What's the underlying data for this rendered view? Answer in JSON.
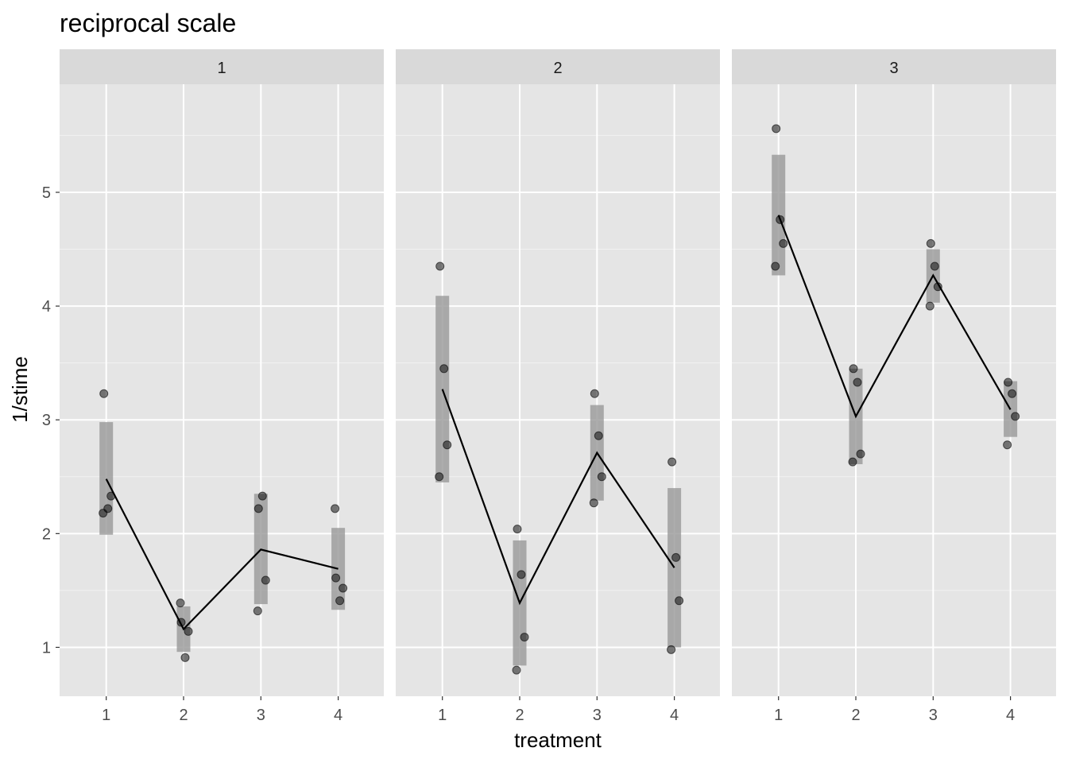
{
  "chart_data": {
    "type": "scatter",
    "title": "reciprocal scale",
    "xlabel": "treatment",
    "ylabel": "1/stime",
    "x_categories": [
      "1",
      "2",
      "3",
      "4"
    ],
    "ylim": [
      0.57,
      5.95
    ],
    "y_ticks": [
      1,
      2,
      3,
      4,
      5
    ],
    "grid": true,
    "panels": [
      {
        "label": "1",
        "points": [
          {
            "x": 1,
            "y": 3.23
          },
          {
            "x": 1,
            "y": 2.22
          },
          {
            "x": 1,
            "y": 2.33
          },
          {
            "x": 1,
            "y": 2.18
          },
          {
            "x": 2,
            "y": 1.22
          },
          {
            "x": 2,
            "y": 0.91
          },
          {
            "x": 2,
            "y": 1.14
          },
          {
            "x": 2,
            "y": 1.39
          },
          {
            "x": 3,
            "y": 2.22
          },
          {
            "x": 3,
            "y": 2.33
          },
          {
            "x": 3,
            "y": 1.59
          },
          {
            "x": 3,
            "y": 1.32
          },
          {
            "x": 4,
            "y": 1.61
          },
          {
            "x": 4,
            "y": 1.41
          },
          {
            "x": 4,
            "y": 1.52
          },
          {
            "x": 4,
            "y": 2.22
          }
        ],
        "means": [
          2.48,
          1.16,
          1.86,
          1.69
        ],
        "intervals": [
          [
            1.99,
            2.98
          ],
          [
            0.96,
            1.36
          ],
          [
            1.38,
            2.35
          ],
          [
            1.33,
            2.05
          ]
        ]
      },
      {
        "label": "2",
        "points": [
          {
            "x": 1,
            "y": 4.35
          },
          {
            "x": 1,
            "y": 3.45
          },
          {
            "x": 1,
            "y": 2.78
          },
          {
            "x": 1,
            "y": 2.5
          },
          {
            "x": 2,
            "y": 2.04
          },
          {
            "x": 2,
            "y": 1.64
          },
          {
            "x": 2,
            "y": 1.09
          },
          {
            "x": 2,
            "y": 0.8
          },
          {
            "x": 3,
            "y": 3.23
          },
          {
            "x": 3,
            "y": 2.86
          },
          {
            "x": 3,
            "y": 2.5
          },
          {
            "x": 3,
            "y": 2.27
          },
          {
            "x": 4,
            "y": 2.63
          },
          {
            "x": 4,
            "y": 1.79
          },
          {
            "x": 4,
            "y": 1.41
          },
          {
            "x": 4,
            "y": 0.98
          }
        ],
        "means": [
          3.27,
          1.39,
          2.71,
          1.7
        ],
        "intervals": [
          [
            2.45,
            4.09
          ],
          [
            0.84,
            1.94
          ],
          [
            2.29,
            3.13
          ],
          [
            1.0,
            2.4
          ]
        ]
      },
      {
        "label": "3",
        "points": [
          {
            "x": 1,
            "y": 5.56
          },
          {
            "x": 1,
            "y": 4.76
          },
          {
            "x": 1,
            "y": 4.55
          },
          {
            "x": 1,
            "y": 4.35
          },
          {
            "x": 2,
            "y": 3.45
          },
          {
            "x": 2,
            "y": 3.33
          },
          {
            "x": 2,
            "y": 2.7
          },
          {
            "x": 2,
            "y": 2.63
          },
          {
            "x": 3,
            "y": 4.55
          },
          {
            "x": 3,
            "y": 4.35
          },
          {
            "x": 3,
            "y": 4.17
          },
          {
            "x": 3,
            "y": 4.0
          },
          {
            "x": 4,
            "y": 3.33
          },
          {
            "x": 4,
            "y": 3.23
          },
          {
            "x": 4,
            "y": 3.03
          },
          {
            "x": 4,
            "y": 2.78
          }
        ],
        "means": [
          4.8,
          3.03,
          4.27,
          3.09
        ],
        "intervals": [
          [
            4.27,
            5.33
          ],
          [
            2.61,
            3.45
          ],
          [
            4.03,
            4.5
          ],
          [
            2.85,
            3.34
          ]
        ]
      }
    ]
  }
}
